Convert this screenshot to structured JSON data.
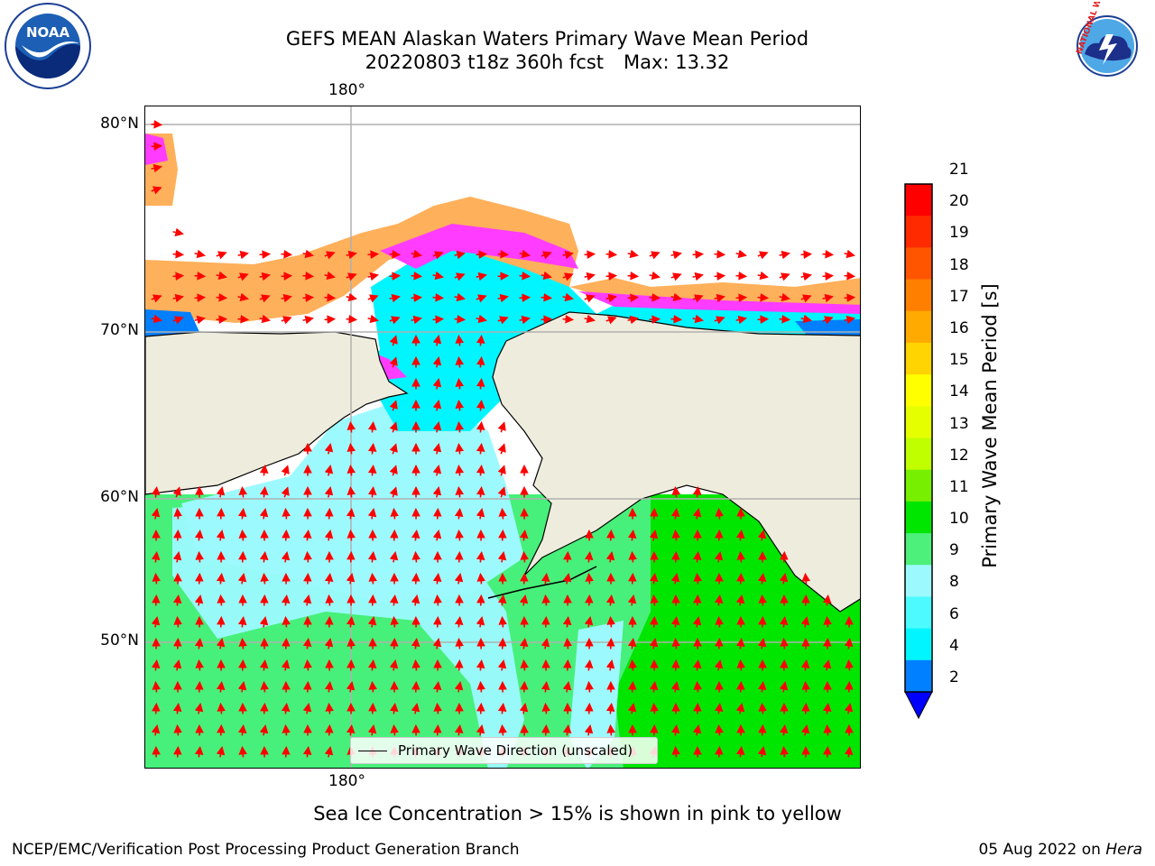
{
  "title": {
    "line1": "GEFS MEAN Alaskan Waters Primary Wave Mean Period",
    "line2_left": "20220803 t18z 360h fcst",
    "line2_right": "Max: 13.32"
  },
  "logos": {
    "left": {
      "name": "noaa-logo",
      "text": "NOAA"
    },
    "right": {
      "name": "national-weather-service-logo",
      "text": "NATIONAL WEATHER SERVICE"
    }
  },
  "map": {
    "lat_labels": [
      "80°N",
      "70°N",
      "60°N",
      "50°N"
    ],
    "lon_label_top": "180°",
    "lon_label_bottom": "180°",
    "legend_label": "Primary Wave Direction (unscaled)",
    "colors": {
      "land": "#eeecdc",
      "sea_ice_pink": "#ff3cff",
      "sea_ice_orange": "#ffb05a",
      "period_4_6": "#00f5ff",
      "period_6_8": "#9cfaff",
      "period_9_10": "#47f07a",
      "period_10_11": "#00e600",
      "arrow": "#ff0000",
      "grid": "#b0b0b0"
    }
  },
  "colorbar": {
    "label": "Primary Wave Mean Period [s]",
    "ticks": [
      "21",
      "20",
      "19",
      "18",
      "17",
      "16",
      "15",
      "14",
      "13",
      "12",
      "11",
      "10",
      "9",
      "8",
      "6",
      "4",
      "2"
    ],
    "colors": [
      "#ff0000",
      "#ff2a00",
      "#ff5500",
      "#ff8000",
      "#ffaa00",
      "#ffd400",
      "#ffff00",
      "#e6ff00",
      "#c0ff00",
      "#77ef00",
      "#00e600",
      "#4cf07a",
      "#9cfaff",
      "#4cfaff",
      "#00f5ff",
      "#0080ff"
    ],
    "under_color": "#0000ff"
  },
  "note": "Sea Ice Concentration > 15% is shown in pink to yellow",
  "footer": {
    "left": "NCEP/EMC/Verification Post Processing Product Generation Branch",
    "right_date": "05 Aug 2022 on ",
    "right_host": "Hera"
  }
}
